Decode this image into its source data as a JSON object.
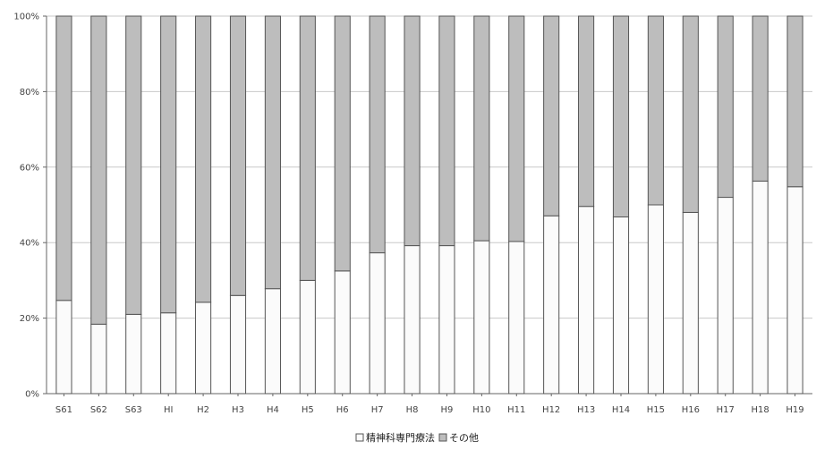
{
  "chart_data": {
    "type": "bar",
    "stacked": true,
    "percent_stacked": true,
    "categories": [
      "S61",
      "S62",
      "S63",
      "HI",
      "H2",
      "H3",
      "H4",
      "H5",
      "H6",
      "H7",
      "H8",
      "H9",
      "H10",
      "H11",
      "H12",
      "H13",
      "H14",
      "H15",
      "H16",
      "H17",
      "H18",
      "H19"
    ],
    "series": [
      {
        "name": "精神科専門療法",
        "values": [
          24.7,
          18.4,
          21.0,
          21.4,
          24.2,
          26.0,
          27.8,
          30.0,
          32.5,
          37.3,
          39.2,
          39.2,
          40.5,
          40.3,
          47.1,
          49.6,
          46.8,
          50.0,
          48.0,
          52.0,
          56.3,
          54.8
        ]
      },
      {
        "name": "その他",
        "values": [
          75.3,
          81.6,
          79.0,
          78.6,
          75.8,
          74.0,
          72.2,
          70.0,
          67.5,
          62.7,
          60.8,
          60.8,
          59.5,
          59.7,
          52.9,
          50.4,
          53.2,
          50.0,
          52.0,
          48.0,
          43.7,
          45.2
        ]
      }
    ],
    "yticks": [
      "0%",
      "20%",
      "40%",
      "60%",
      "80%",
      "100%"
    ],
    "ylim": [
      0,
      100
    ],
    "grid": true,
    "legend_position": "bottom-center",
    "colors": {
      "series1_fill": "#fbfbfb",
      "series2_fill": "#bdbdbd",
      "stroke": "#555555",
      "grid": "#c8c8c8"
    }
  }
}
